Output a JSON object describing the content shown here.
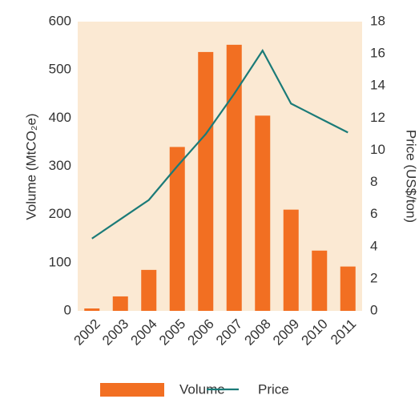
{
  "chart_data": {
    "type": "bar-line",
    "categories": [
      "2002",
      "2003",
      "2004",
      "2005",
      "2006",
      "2007",
      "2008",
      "2009",
      "2010",
      "2011"
    ],
    "series": [
      {
        "name": "Volume",
        "type": "bar",
        "color": "#f26f22",
        "values": [
          5,
          30,
          85,
          340,
          537,
          552,
          405,
          210,
          125,
          92
        ]
      },
      {
        "name": "Price",
        "type": "line",
        "axis": "y2",
        "color": "#1b7b78",
        "values": [
          4.5,
          5.7,
          6.9,
          9,
          11,
          13.5,
          16.2,
          12.9,
          12,
          11.1
        ]
      }
    ],
    "y_label": "Volume (MtCO₂e)",
    "y2_label": "Price (US$/ton)",
    "ylim": [
      0,
      600
    ],
    "yticks": [
      0,
      100,
      200,
      300,
      400,
      500,
      600
    ],
    "y2lim": [
      0,
      18
    ],
    "y2ticks": [
      0,
      2,
      4,
      6,
      8,
      10,
      12,
      14,
      16,
      18
    ],
    "plot_background": "#fbe9d3",
    "legend": "bottom"
  }
}
